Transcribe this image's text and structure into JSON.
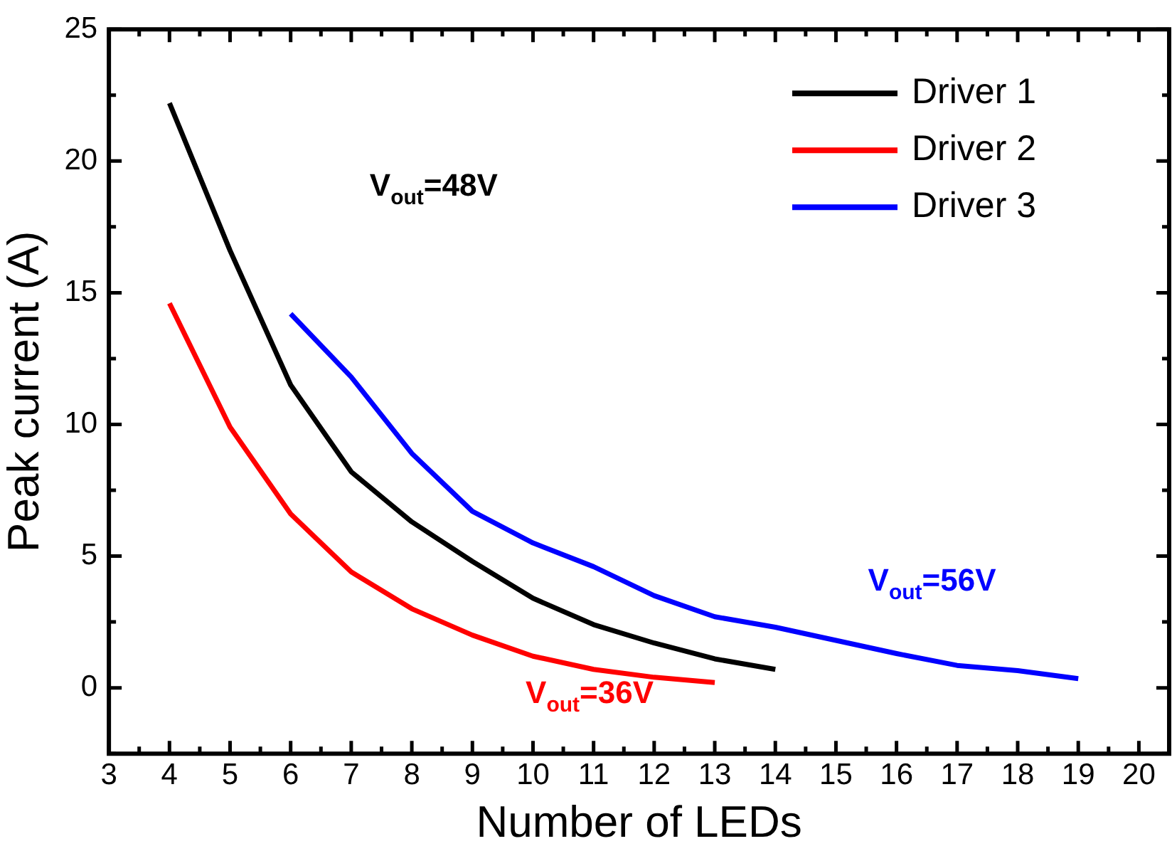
{
  "chart_data": {
    "type": "line",
    "xlabel": "Number of LEDs",
    "ylabel": "Peak current (A)",
    "xlim": [
      3,
      20.5
    ],
    "ylim": [
      -2.5,
      25
    ],
    "xticks": [
      3,
      {
        "value": 3.5,
        "label": null
      },
      4,
      {
        "value": 4.5,
        "label": null
      },
      5,
      {
        "value": 5.5,
        "label": null
      },
      6,
      {
        "value": 6.5,
        "label": null
      },
      7,
      {
        "value": 7.5,
        "label": null
      },
      8,
      {
        "value": 8.5,
        "label": null
      },
      9,
      {
        "value": 9.5,
        "label": null
      },
      10,
      {
        "value": 10.5,
        "label": null
      },
      11,
      {
        "value": 11.5,
        "label": null
      },
      12,
      {
        "value": 12.5,
        "label": null
      },
      13,
      {
        "value": 13.5,
        "label": null
      },
      14,
      {
        "value": 14.5,
        "label": null
      },
      15,
      {
        "value": 15.5,
        "label": null
      },
      16,
      {
        "value": 16.5,
        "label": null
      },
      17,
      {
        "value": 17.5,
        "label": null
      },
      18,
      {
        "value": 18.5,
        "label": null
      },
      19,
      {
        "value": 19.5,
        "label": null
      },
      20
    ],
    "yticks": [
      {
        "value": -2.5,
        "label": null
      },
      0,
      {
        "value": 2.5,
        "label": null
      },
      5,
      {
        "value": 7.5,
        "label": null
      },
      10,
      {
        "value": 12.5,
        "label": null
      },
      15,
      {
        "value": 17.5,
        "label": null
      },
      20,
      {
        "value": 22.5,
        "label": null
      },
      25
    ],
    "legend": "top right",
    "marker": "none",
    "line_style": "solid",
    "grid": false,
    "series": [
      {
        "name": "Driver 1",
        "color": "#000000",
        "x": [
          4,
          5,
          6,
          7,
          8,
          9,
          10,
          11,
          12,
          13,
          14
        ],
        "values": [
          22.2,
          16.6,
          11.5,
          8.2,
          6.3,
          4.8,
          3.4,
          2.4,
          1.7,
          1.1,
          0.7
        ]
      },
      {
        "name": "Driver 2",
        "color": "#ff0000",
        "x": [
          4,
          5,
          6,
          7,
          8,
          9,
          10,
          11,
          12,
          13
        ],
        "values": [
          14.6,
          9.9,
          6.6,
          4.4,
          3.0,
          2.0,
          1.2,
          0.7,
          0.4,
          0.2
        ]
      },
      {
        "name": "Driver 3",
        "color": "#0000ff",
        "x": [
          6,
          7,
          8,
          9,
          10,
          11,
          12,
          13,
          14,
          15,
          16,
          17,
          18,
          19
        ],
        "values": [
          14.2,
          11.8,
          8.9,
          6.7,
          5.5,
          4.6,
          3.5,
          2.7,
          2.3,
          1.8,
          1.3,
          0.85,
          0.65,
          0.35
        ]
      }
    ],
    "annotations": [
      "V$_{out}$=48V",
      "V$_{out}$=36V",
      "V$_{out}$=56V"
    ]
  }
}
